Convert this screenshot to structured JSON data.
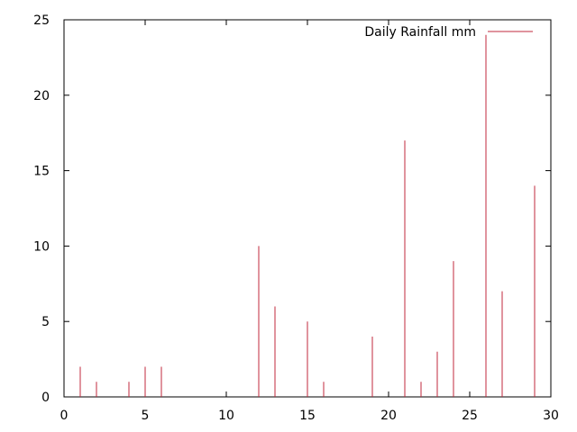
{
  "chart_data": {
    "type": "bar",
    "title": "",
    "xlabel": "",
    "ylabel": "",
    "xlim": [
      0,
      30
    ],
    "ylim": [
      0,
      25
    ],
    "x_ticks": [
      0,
      5,
      10,
      15,
      20,
      25,
      30
    ],
    "y_ticks": [
      0,
      5,
      10,
      15,
      20,
      25
    ],
    "grid": false,
    "legend_placement": "top-right",
    "series": [
      {
        "name": "Daily Rainfall mm",
        "color": "#c0283c",
        "style": "impulses",
        "x": [
          1,
          2,
          4,
          5,
          6,
          12,
          13,
          15,
          16,
          19,
          21,
          22,
          23,
          24,
          26,
          27,
          29
        ],
        "y": [
          2,
          1,
          1,
          2,
          2,
          10,
          6,
          5,
          1,
          4,
          17,
          1,
          3,
          9,
          24,
          7,
          14
        ]
      }
    ]
  }
}
